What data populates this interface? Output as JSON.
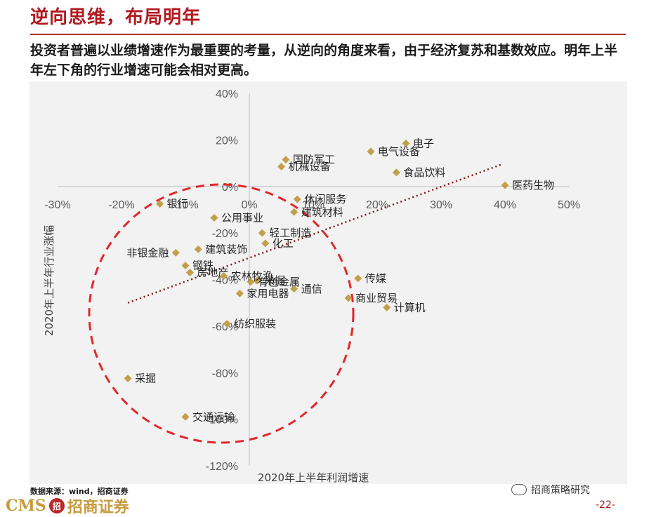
{
  "header": {
    "title": "逆向思维，布局明年",
    "subtitle": "投资者普遍以业绩增速作为最重要的考量，从逆向的角度来看，由于经济复苏和基数效应。明年上半年左下角的行业增速可能会相对更高。"
  },
  "footer": {
    "source": "数据来源：wind，招商证券",
    "logo_text": "CMS",
    "logo_mark": "招",
    "logo_cn": "招商证券",
    "wechat_label": "招商策略研究",
    "page_number": "-22-"
  },
  "colors": {
    "title": "#b01a1f",
    "marker": "#c2a04a",
    "circle": "#e3262d",
    "trendline": "#7b1a1a"
  },
  "chart_data": {
    "type": "scatter",
    "xlabel": "2020年上半年利润增速",
    "ylabel": "2020年上半年行业涨幅",
    "xlim": [
      -0.3,
      0.5
    ],
    "ylim": [
      -1.2,
      0.4
    ],
    "x_ticks": [
      "-30%",
      "-20%",
      "-10%",
      "0%",
      "10%",
      "20%",
      "30%",
      "40%",
      "50%"
    ],
    "y_ticks": [
      "40%",
      "20%",
      "0%",
      "-20%",
      "-40%",
      "-60%",
      "-80%",
      "-100%",
      "-120%"
    ],
    "points": [
      {
        "label": "电子",
        "x": 0.245,
        "y": 0.185
      },
      {
        "label": "电气设备",
        "x": 0.19,
        "y": 0.15
      },
      {
        "label": "国防军工",
        "x": 0.057,
        "y": 0.115
      },
      {
        "label": "机械设备",
        "x": 0.05,
        "y": 0.085
      },
      {
        "label": "食品饮料",
        "x": 0.23,
        "y": 0.06
      },
      {
        "label": "医药生物",
        "x": 0.4,
        "y": 0.005
      },
      {
        "label": "银行",
        "x": -0.14,
        "y": -0.075
      },
      {
        "label": "休闲服务",
        "x": 0.075,
        "y": -0.055
      },
      {
        "label": "公用事业",
        "x": -0.055,
        "y": -0.135
      },
      {
        "label": "建筑材料",
        "x": 0.07,
        "y": -0.11
      },
      {
        "label": "轻工制造",
        "x": 0.02,
        "y": -0.2
      },
      {
        "label": "化工",
        "x": 0.025,
        "y": -0.245
      },
      {
        "label": "非银金融",
        "x": -0.115,
        "y": -0.285
      },
      {
        "label": "建筑装饰",
        "x": -0.08,
        "y": -0.27
      },
      {
        "label": "钢铁",
        "x": -0.1,
        "y": -0.34
      },
      {
        "label": "房地产",
        "x": -0.093,
        "y": -0.37
      },
      {
        "label": "农林牧渔",
        "x": -0.04,
        "y": -0.385
      },
      {
        "label": "有色金属",
        "x": 0.002,
        "y": -0.41
      },
      {
        "label": "采掘",
        "x": 0.012,
        "y": -0.405
      },
      {
        "label": "家用电器",
        "x": -0.015,
        "y": -0.46
      },
      {
        "label": "通信",
        "x": 0.07,
        "y": -0.44
      },
      {
        "label": "传媒",
        "x": 0.17,
        "y": -0.395
      },
      {
        "label": "商业贸易",
        "x": 0.155,
        "y": -0.48
      },
      {
        "label": "计算机",
        "x": 0.215,
        "y": -0.52
      },
      {
        "label": "纺织服装",
        "x": -0.035,
        "y": -0.59
      },
      {
        "label": "采掘",
        "x": -0.19,
        "y": -0.825
      },
      {
        "label": "交通运输",
        "x": -0.1,
        "y": -0.99
      }
    ],
    "trendline": {
      "x": [
        -0.19,
        0.395
      ],
      "y": [
        -0.5,
        0.095
      ]
    }
  }
}
